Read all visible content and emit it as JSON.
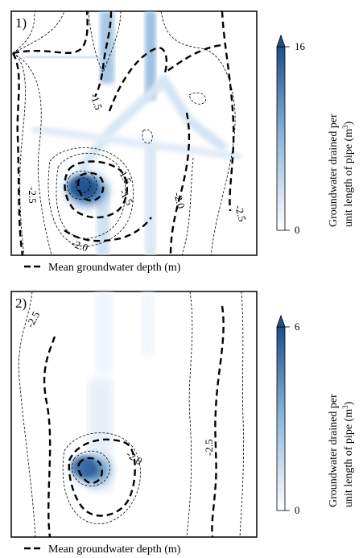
{
  "panels": [
    {
      "panel_label": "1)",
      "contour_labels": [
        "-1.5",
        "-1.5",
        "-1.5",
        "-2.0",
        "-2.0",
        "-2.5",
        "-2.5"
      ],
      "colorbar": {
        "max_label": "16",
        "min_label": "0",
        "title_line1": "Groundwater drained per",
        "title_line2": "unit length of pipe (m",
        "title_sup": "3",
        "title_close": ")"
      },
      "legend": {
        "text": "Mean groundwater depth (m)"
      }
    },
    {
      "panel_label": "2)",
      "contour_labels": [
        "-2.5",
        "-2.0",
        "-2.5"
      ],
      "colorbar": {
        "max_label": "6",
        "min_label": "0",
        "title_line1": "Groundwater drained per",
        "title_line2": "unit length of pipe (m",
        "title_sup": "3",
        "title_close": ")"
      },
      "legend": {
        "text": "Mean groundwater depth (m)"
      }
    }
  ],
  "colors": {
    "heat_dark": "#1f4f8a",
    "heat_mid": "#6fa0cf",
    "heat_light": "#d3e4f4",
    "contour": "#000000"
  }
}
